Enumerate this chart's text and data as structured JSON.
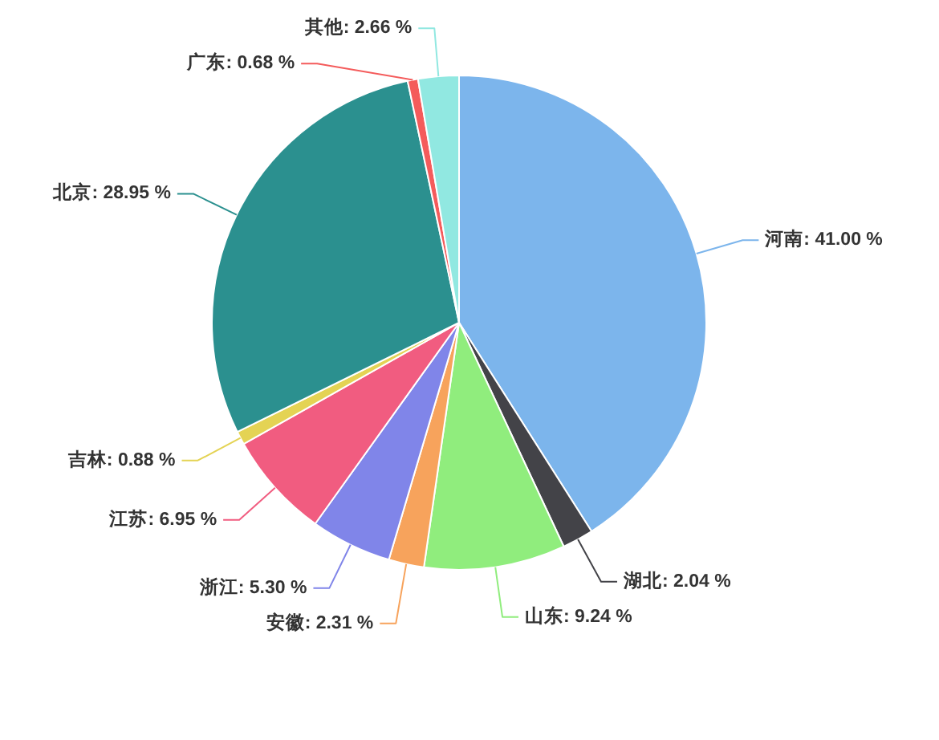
{
  "chart_data": {
    "type": "pie",
    "categories": [
      "河南",
      "湖北",
      "山东",
      "安徽",
      "浙江",
      "江苏",
      "吉林",
      "北京",
      "广东",
      "其他"
    ],
    "values": [
      41.0,
      2.04,
      9.24,
      2.31,
      5.3,
      6.95,
      0.88,
      28.95,
      0.68,
      2.66
    ],
    "value_labels": [
      "41.00 %",
      "2.04 %",
      "9.24 %",
      "2.31 %",
      "5.30 %",
      "6.95 %",
      "0.88 %",
      "28.95 %",
      "0.68 %",
      "2.66 %"
    ],
    "colors": [
      "#7cb5ec",
      "#434348",
      "#90ed7d",
      "#f7a35c",
      "#8085e9",
      "#f15c80",
      "#e4d354",
      "#2b908f",
      "#f45b5b",
      "#91e8e1"
    ]
  }
}
